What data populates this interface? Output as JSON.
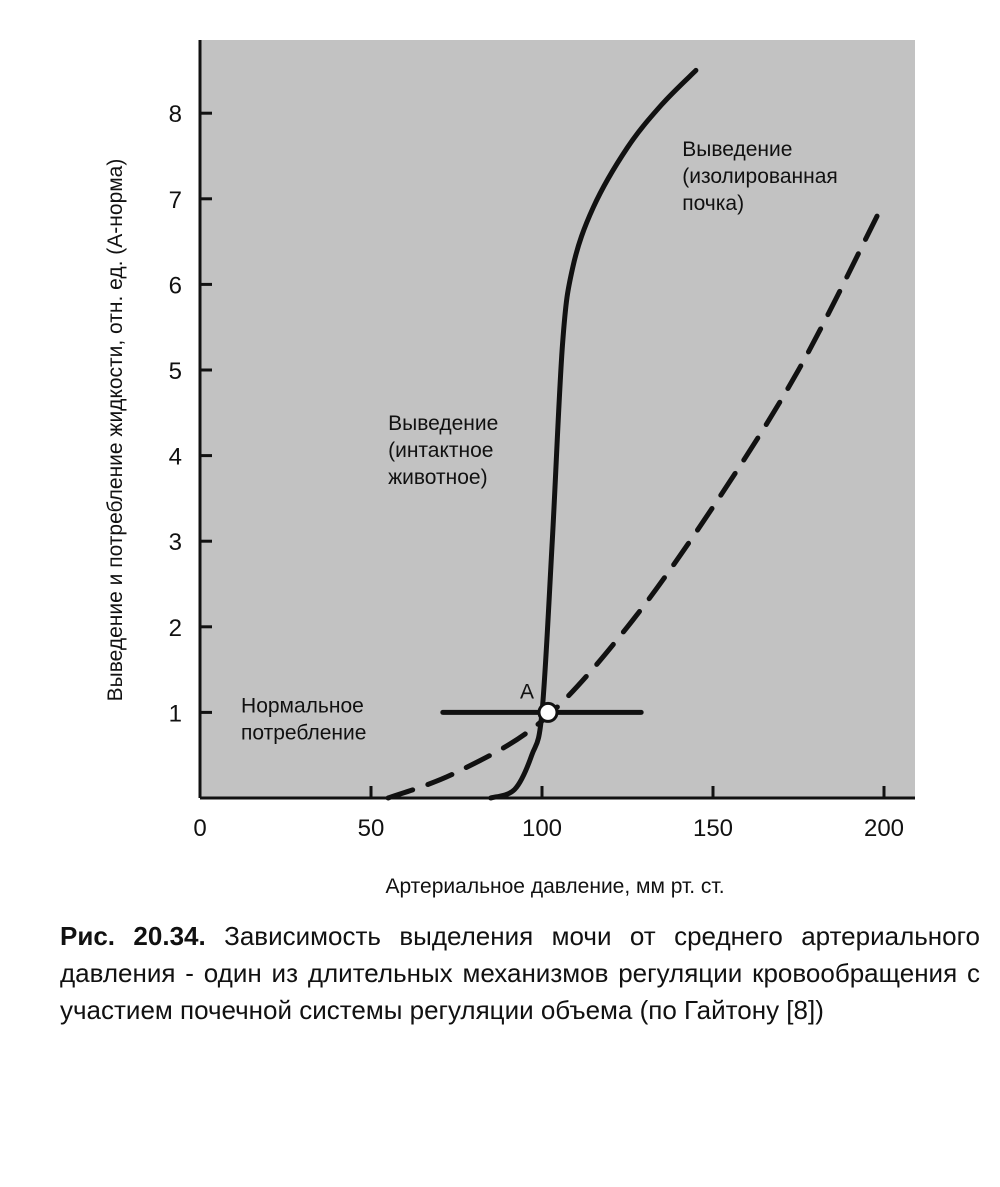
{
  "chart_data": {
    "type": "line",
    "xlabel": "Артериальное давление, мм рт. ст.",
    "ylabel": "Выведение и потребление жидкости, отн. ед. (А-норма)",
    "xlim": [
      0,
      210
    ],
    "ylim": [
      0,
      9
    ],
    "x_ticks": [
      0,
      50,
      100,
      150,
      200
    ],
    "y_ticks": [
      1,
      2,
      3,
      4,
      5,
      6,
      7,
      8
    ],
    "grid": false,
    "plot_background": "#c2c2c2",
    "series": [
      {
        "name": "Выведение (изолированная почка)",
        "style": "dashed",
        "points": [
          [
            55,
            0
          ],
          [
            75,
            0.3
          ],
          [
            100,
            0.9
          ],
          [
            125,
            2
          ],
          [
            150,
            3.4
          ],
          [
            175,
            5
          ],
          [
            198,
            6.8
          ]
        ]
      },
      {
        "name": "Выведение (интактное животное)",
        "style": "solid",
        "points": [
          [
            85,
            0
          ],
          [
            92,
            0.1
          ],
          [
            97,
            0.5
          ],
          [
            100,
            1
          ],
          [
            103,
            3
          ],
          [
            106,
            5.3
          ],
          [
            109,
            6.2
          ],
          [
            115,
            6.9
          ],
          [
            125,
            7.6
          ],
          [
            135,
            8.1
          ],
          [
            145,
            8.5
          ]
        ]
      },
      {
        "name": "Нормальное потребление",
        "style": "solid",
        "points": [
          [
            71,
            1
          ],
          [
            129,
            1
          ]
        ]
      }
    ],
    "annotations": [
      {
        "lines": [
          "Выведение",
          "(изолированная",
          "почка)"
        ],
        "x": 141,
        "y": 7.5
      },
      {
        "lines": [
          "Выведение",
          "(интактное",
          "животное)"
        ],
        "x": 55,
        "y": 4.3
      },
      {
        "lines": [
          "Нормальное",
          "потребление"
        ],
        "x": 12,
        "y": 1.0
      }
    ],
    "point_label": {
      "text": "А",
      "x": 100,
      "y": 1
    }
  },
  "caption": {
    "figure_number": "Рис. 20.34.",
    "text": "Зависимость выделения мочи от среднего артериального давления - один из длительных механизмов регуляции кровообращения с участием почечной системы регуляции объема (по Гайтону [8])"
  }
}
